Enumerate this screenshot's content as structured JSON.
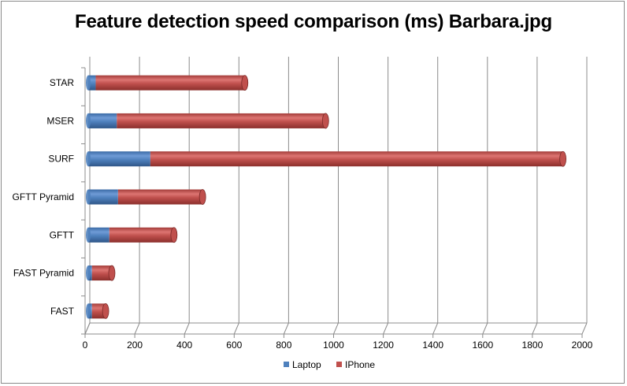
{
  "chart_data": {
    "type": "bar",
    "orientation": "horizontal",
    "stacked": true,
    "style": "3d-cylinder",
    "title": "Feature detection speed comparison (ms) Barbara.jpg",
    "categories": [
      "STAR",
      "MSER",
      "SURF",
      "GFTT Pyramid",
      "GFTT",
      "FAST Pyramid",
      "FAST"
    ],
    "series": [
      {
        "name": "Laptop",
        "color": "#4f81bd",
        "values": [
          30,
          115,
          250,
          120,
          85,
          15,
          15
        ]
      },
      {
        "name": "IPhone",
        "color": "#c0504d",
        "values": [
          600,
          840,
          1660,
          340,
          260,
          80,
          55
        ]
      }
    ],
    "xlim": [
      0,
      2000
    ],
    "x_ticks": [
      0,
      200,
      400,
      600,
      800,
      1000,
      1200,
      1400,
      1600,
      1800,
      2000
    ],
    "xlabel": "",
    "ylabel": "",
    "grid": true,
    "legend_position": "bottom"
  }
}
